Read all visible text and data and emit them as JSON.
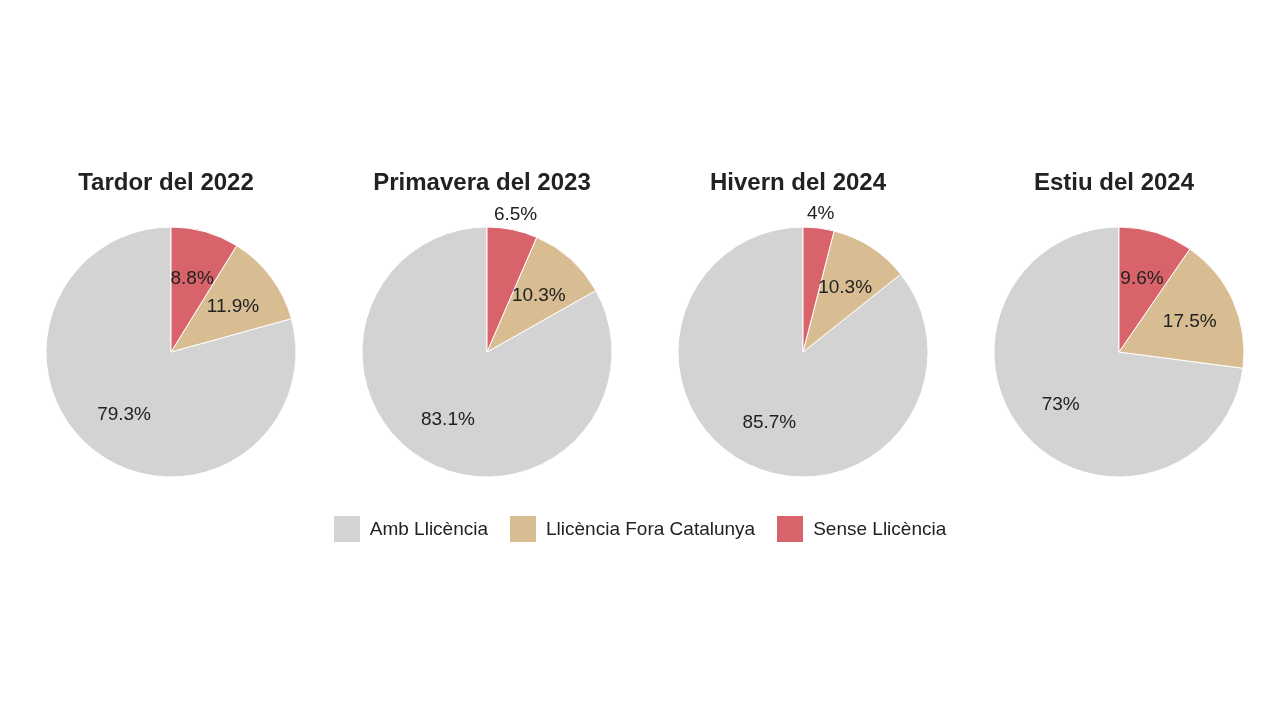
{
  "chart_data": [
    {
      "type": "pie",
      "title": "Tardor del 2022",
      "categories": [
        "Amb Llicència",
        "Llicència Fora Catalunya",
        "Sense Llicència"
      ],
      "values": [
        79.3,
        11.9,
        8.8
      ],
      "value_labels": [
        "79.3%",
        "11.9%",
        "8.8%"
      ],
      "colors": [
        "#d3d3d3",
        "#d8bd93",
        "#d9636b"
      ],
      "legend": "bottom"
    },
    {
      "type": "pie",
      "title": "Primavera del 2023",
      "categories": [
        null,
        null,
        null
      ],
      "values": [
        83.1,
        10.3,
        6.5
      ],
      "value_labels": [
        "83.1%",
        "10.3%",
        "6.5%"
      ],
      "colors": [
        "#d3d3d3",
        "#d8bd93",
        "#d9636b"
      ]
    },
    {
      "type": "pie",
      "title": "Hivern del 2024",
      "categories": [
        null,
        null,
        null
      ],
      "values": [
        85.7,
        10.3,
        4
      ],
      "value_labels": [
        "85.7%",
        "10.3%",
        "4%"
      ],
      "colors": [
        "#d3d3d3",
        "#d8bd93",
        "#d9636b"
      ]
    },
    {
      "type": "pie",
      "title": "Estiu del 2024",
      "categories": [
        null,
        null,
        null
      ],
      "values": [
        73,
        17.5,
        9.6
      ],
      "value_labels": [
        "73%",
        "17.5%",
        "9.6%"
      ],
      "colors": [
        "#d3d3d3",
        "#d8bd93",
        "#d9636b"
      ]
    }
  ]
}
